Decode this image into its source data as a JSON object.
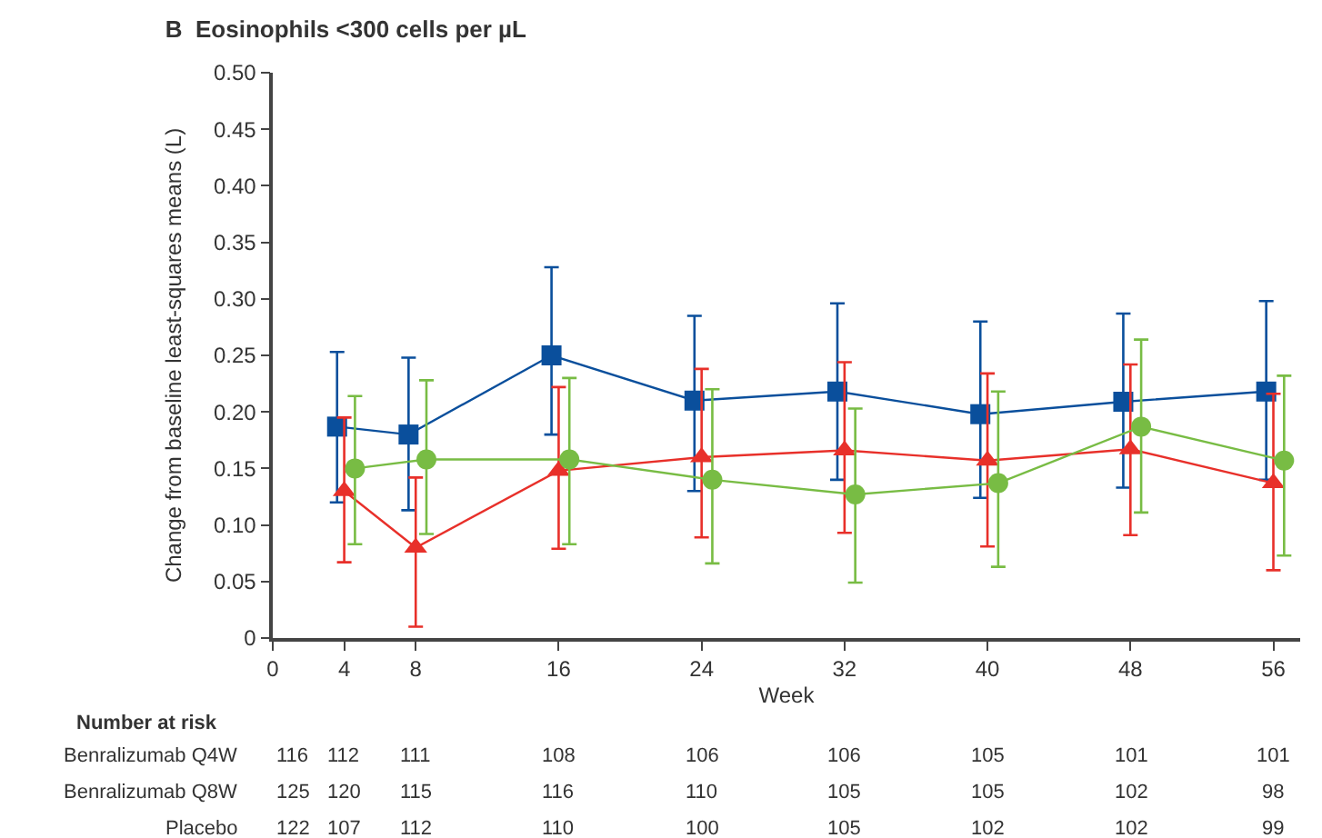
{
  "chart_data": {
    "type": "line",
    "title": "B  Eosinophils <300 cells per µL",
    "xlabel": "Week",
    "ylabel": "Change from baseline least-squares means (L)",
    "xlim": [
      0,
      57.5
    ],
    "xticks": [
      0,
      4,
      8,
      16,
      24,
      32,
      40,
      48,
      56
    ],
    "ylim": [
      0,
      0.5
    ],
    "yticks": [
      0,
      {
        "value": 0.05,
        "label": "0.05"
      },
      {
        "value": 0.1,
        "label": "0.10"
      },
      {
        "value": 0.15,
        "label": "0.15"
      },
      {
        "value": 0.2,
        "label": "0.20"
      },
      {
        "value": 0.25,
        "label": "0.25"
      },
      {
        "value": 0.3,
        "label": "0.30"
      },
      {
        "value": 0.35,
        "label": "0.35"
      },
      {
        "value": 0.4,
        "label": "0.40"
      },
      {
        "value": 0.45,
        "label": "0.45"
      },
      {
        "value": 0.5,
        "label": "0.50"
      }
    ],
    "line_style": "solid",
    "series": [
      {
        "color": "#0a4f9c",
        "marker": "square",
        "x": [
          3.6,
          7.6,
          15.6,
          23.6,
          31.6,
          39.6,
          47.6,
          55.6
        ],
        "values": [
          0.187,
          0.18,
          0.25,
          0.21,
          0.218,
          0.198,
          0.209,
          0.218
        ],
        "errors": [
          [
            0.12,
            0.253
          ],
          [
            0.113,
            0.248
          ],
          [
            0.18,
            0.328
          ],
          [
            0.13,
            0.285
          ],
          [
            0.14,
            0.296
          ],
          [
            0.124,
            0.28
          ],
          [
            0.133,
            0.287
          ],
          [
            0.14,
            0.298
          ]
        ]
      },
      {
        "color": "#e8302a",
        "marker": "triangle",
        "x": [
          4,
          8,
          16,
          24,
          32,
          40,
          48,
          56
        ],
        "values": [
          0.13,
          0.08,
          0.148,
          0.16,
          0.166,
          0.157,
          0.167,
          0.137
        ],
        "errors": [
          [
            0.067,
            0.195
          ],
          [
            0.01,
            0.142
          ],
          [
            0.079,
            0.222
          ],
          [
            0.089,
            0.238
          ],
          [
            0.093,
            0.244
          ],
          [
            0.081,
            0.234
          ],
          [
            0.091,
            0.242
          ],
          [
            0.06,
            0.216
          ]
        ]
      },
      {
        "color": "#78bc44",
        "marker": "circle",
        "x": [
          4.6,
          8.6,
          16.6,
          24.6,
          32.6,
          40.6,
          48.6,
          56.6
        ],
        "values": [
          0.15,
          0.158,
          0.158,
          0.14,
          0.127,
          0.137,
          0.187,
          0.157
        ],
        "errors": [
          [
            0.083,
            0.214
          ],
          [
            0.092,
            0.228
          ],
          [
            0.083,
            0.23
          ],
          [
            0.066,
            0.22
          ],
          [
            0.049,
            0.203
          ],
          [
            0.063,
            0.218
          ],
          [
            0.111,
            0.264
          ],
          [
            0.073,
            0.232
          ]
        ]
      }
    ],
    "annotations": [
      "Number at risk",
      "Benralizumab Q4W",
      "116",
      "112",
      "111",
      "108",
      "106",
      "106",
      "105",
      "101",
      "101",
      "Benralizumab Q8W",
      "125",
      "120",
      "115",
      "116",
      "110",
      "105",
      "105",
      "102",
      "98",
      "Placebo",
      "122",
      "107",
      "112",
      "110",
      "100",
      "105",
      "102",
      "102",
      "99"
    ]
  }
}
